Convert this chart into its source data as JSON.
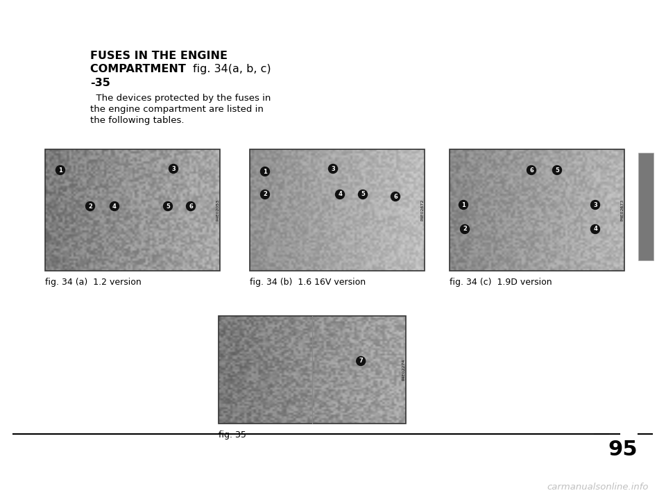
{
  "bg_color": "#ffffff",
  "page_number": "95",
  "fig_captions": [
    "fig. 34 (a)  1.2 version",
    "fig. 34 (b)  1.6 16V version",
    "fig. 34 (c)  1.9D version"
  ],
  "fig35_caption": "fig. 35",
  "sidebar_color": "#787878",
  "watermark_text": "carmanualsonline.info",
  "watermark_color": "#c0c0c0",
  "img1_code": "P4E02053",
  "img2_code": "P4E02672",
  "img3_code": "P4E02673",
  "img4_code": "P4E02274",
  "title_line1": "FUSES IN THE ENGINE",
  "title_line2_bold": "COMPARTMENT ",
  "title_line2_normal": "fig. 34(a, b, c)",
  "title_line3": "-35",
  "body_text": "  The devices protected by the fuses in\nthe engine compartment are listed in\nthe following tables."
}
